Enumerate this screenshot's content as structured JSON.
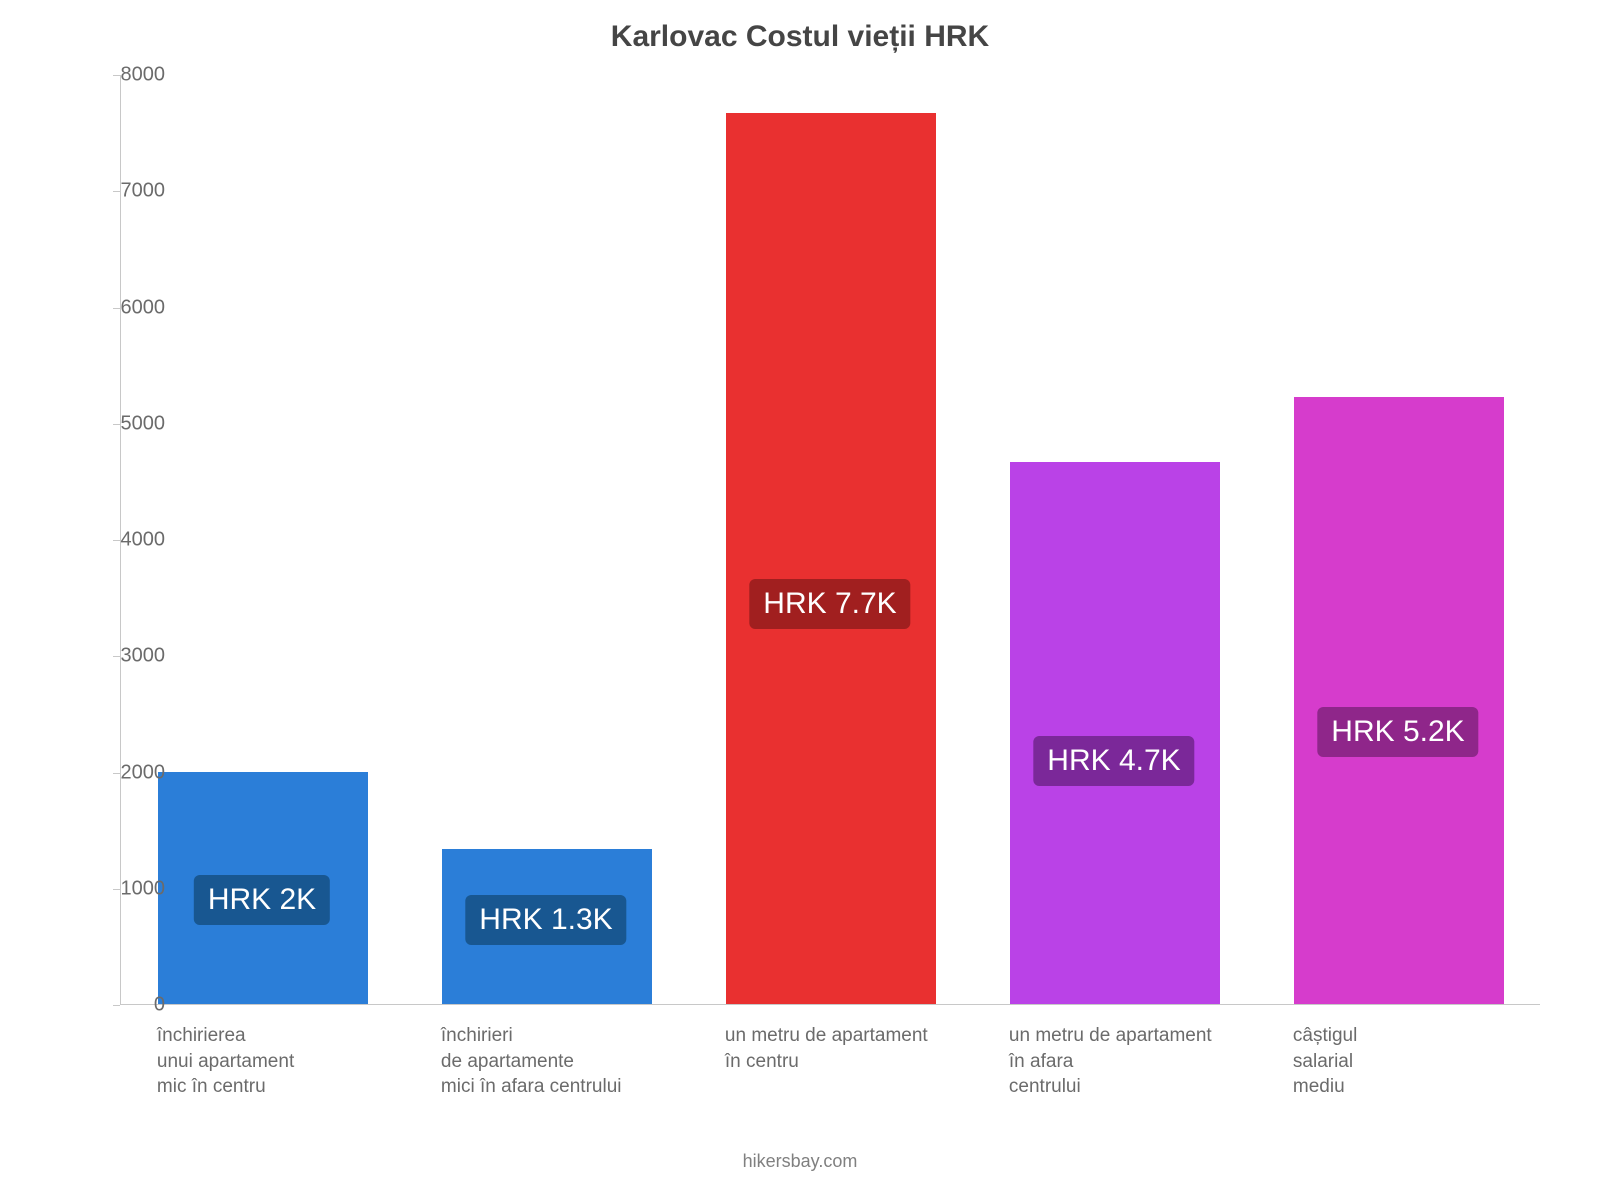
{
  "chart": {
    "type": "bar",
    "title": "Karlovac Costul vieții HRK",
    "title_fontsize": 30,
    "title_color": "#454545",
    "background_color": "#ffffff",
    "axis_line_color": "#c8c8c8",
    "tick_label_color": "#6b6b6b",
    "tick_fontsize": 20,
    "x_label_fontsize": 19,
    "ylim_max": 8000,
    "ylim_min": 0,
    "ytick_step": 1000,
    "yticks": [
      0,
      1000,
      2000,
      3000,
      4000,
      5000,
      6000,
      7000,
      8000
    ],
    "bar_width_ratio": 0.74,
    "categories": [
      "închirierea\nunui apartament\nmic în centru",
      "închirieri\nde apartamente\nmici în afara centrului",
      "un metru de apartament\nîn centru",
      "un metru de apartament\nîn afara\ncentrului",
      "câștigul\nsalarial\nmediu"
    ],
    "values": [
      2000,
      1333,
      7666,
      4666,
      5225
    ],
    "bar_colors": [
      "#2b7ed8",
      "#2b7ed8",
      "#e93030",
      "#ba42e7",
      "#d63ccc"
    ],
    "data_labels": [
      "HRK 2K",
      "HRK 1.3K",
      "HRK 7.7K",
      "HRK 4.7K",
      "HRK 5.2K"
    ],
    "data_label_bg": [
      "#185791",
      "#185791",
      "#a11f1f",
      "#7b2899",
      "#8f268a"
    ],
    "data_label_fontsize": 30,
    "footer": "hikersbay.com",
    "footer_color": "#808080",
    "footer_fontsize": 18
  }
}
